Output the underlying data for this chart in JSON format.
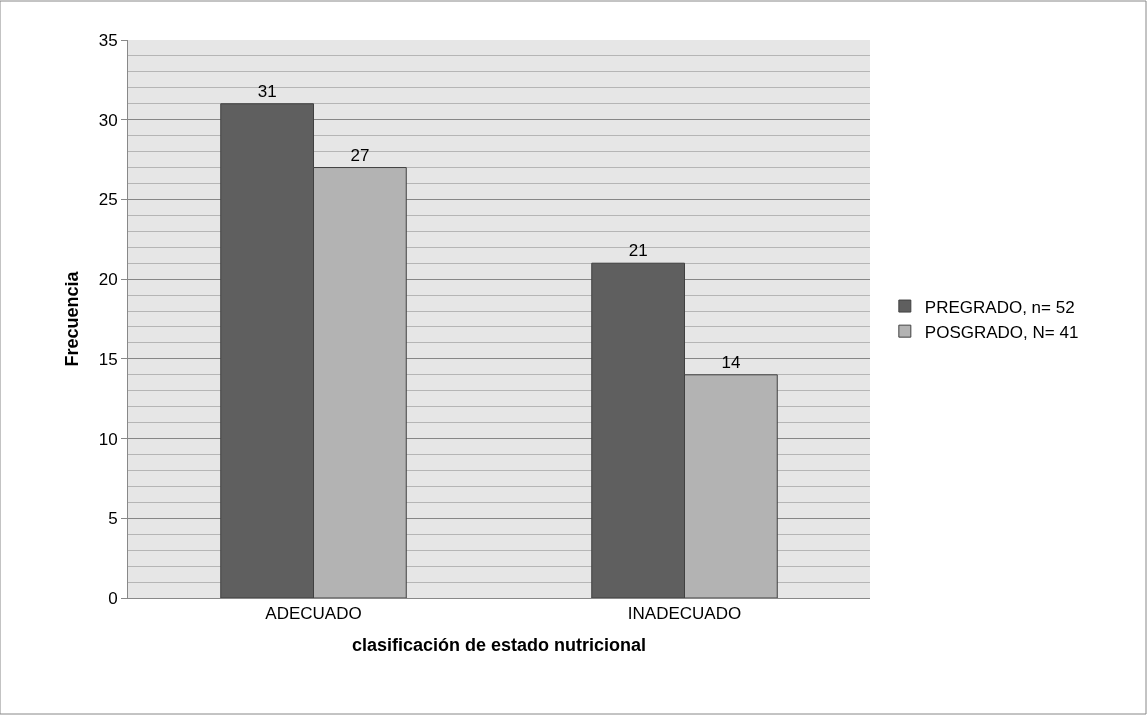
{
  "chart_data": {
    "type": "bar",
    "xlabel": "clasificación de estado nutricional",
    "ylabel": "Frecuencia",
    "categories": [
      "ADECUADO",
      "INADECUADO"
    ],
    "series": [
      {
        "name": "PREGRADO, n= 52",
        "color": "#5f5f5f",
        "values": [
          31,
          21
        ]
      },
      {
        "name": "POSGRADO, N= 41",
        "color": "#b3b3b3",
        "values": [
          27,
          14
        ]
      }
    ],
    "ylim": [
      0,
      35
    ],
    "yticks": [
      0,
      5,
      10,
      15,
      20,
      25,
      30,
      35
    ],
    "grid": "y",
    "legend": "right",
    "data_labels": true
  }
}
